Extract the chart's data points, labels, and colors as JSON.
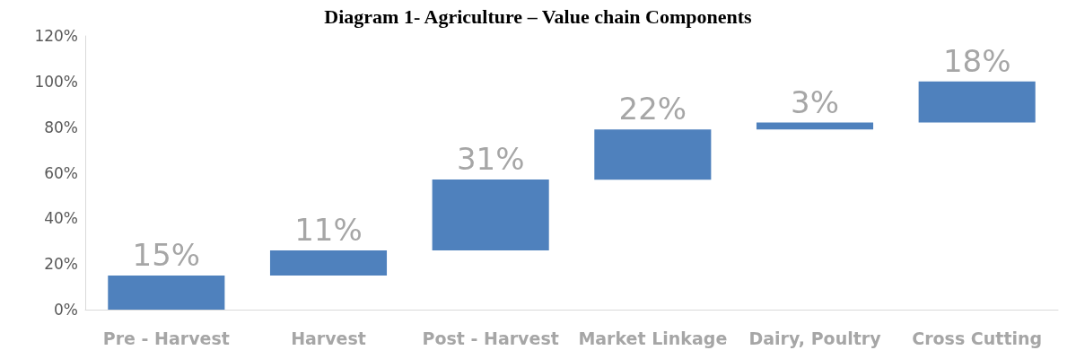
{
  "chart_data": {
    "type": "bar",
    "title": "Diagram 1- Agriculture – Value chain Components",
    "categories": [
      "Pre - Harvest",
      "Harvest",
      "Post - Harvest",
      "Market Linkage",
      "Dairy, Poultry",
      "Cross Cutting"
    ],
    "values": [
      15,
      11,
      31,
      22,
      3,
      18
    ],
    "base": [
      0,
      15,
      26,
      57,
      79,
      82
    ],
    "value_labels": [
      "15%",
      "11%",
      "31%",
      "22%",
      "3%",
      "18%"
    ],
    "color": "#4f81bd",
    "ylim": [
      0,
      120
    ],
    "yticks": [
      {
        "value": 0,
        "label": "0%"
      },
      {
        "value": 20,
        "label": "20%"
      },
      {
        "value": 40,
        "label": "40%"
      },
      {
        "value": 60,
        "label": "60%"
      },
      {
        "value": 80,
        "label": "80%"
      },
      {
        "value": 100,
        "label": "100%"
      },
      {
        "value": 120,
        "label": "120%"
      }
    ],
    "grid": false
  }
}
